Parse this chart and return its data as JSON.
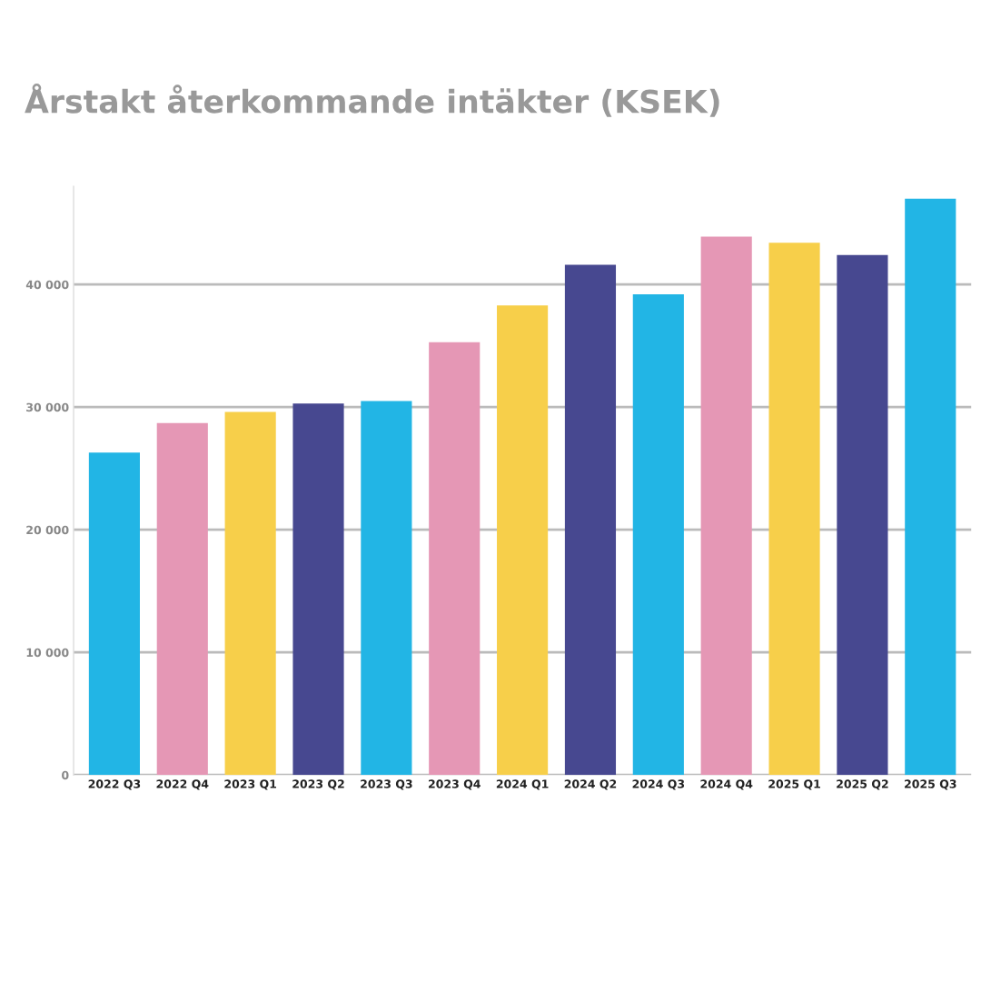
{
  "chart_data": {
    "type": "bar",
    "title": "Årstakt återkommande intäkter (KSEK)",
    "categories": [
      "2022 Q3",
      "2022 Q4",
      "2023 Q1",
      "2023 Q2",
      "2023 Q3",
      "2023 Q4",
      "2024 Q1",
      "2024 Q2",
      "2024 Q3",
      "2024 Q4",
      "2025 Q1",
      "2025 Q2",
      "2025 Q3"
    ],
    "values": [
      26300,
      28700,
      29600,
      30300,
      30500,
      35300,
      38300,
      41600,
      39200,
      43900,
      43400,
      42400,
      47000
    ],
    "colors": [
      "#22b5e5",
      "#e597b5",
      "#f7cf4a",
      "#474890",
      "#22b5e5",
      "#e597b5",
      "#f7cf4a",
      "#474890",
      "#22b5e5",
      "#e597b5",
      "#f7cf4a",
      "#474890",
      "#22b5e5"
    ],
    "ylim": [
      0,
      48000
    ],
    "yticks": [
      0,
      {
        "value": 10000,
        "label": "10 000"
      },
      {
        "value": 20000,
        "label": "20 000"
      },
      {
        "value": 30000,
        "label": "30 000"
      },
      {
        "value": 40000,
        "label": "40 000"
      }
    ],
    "grid": "y"
  }
}
